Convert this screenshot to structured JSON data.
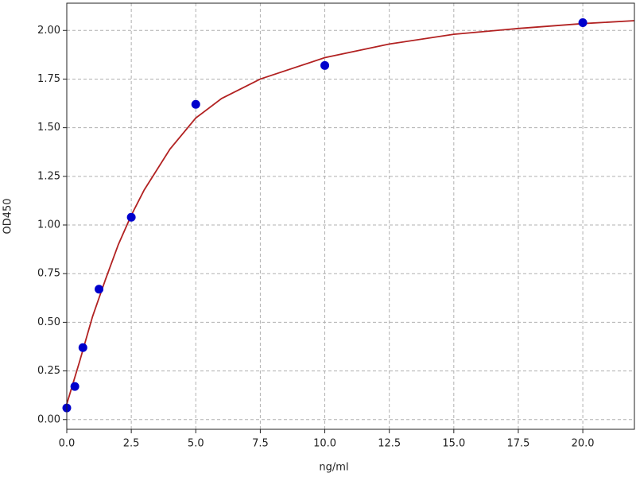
{
  "chart_data": {
    "type": "scatter",
    "xlabel": "ng/ml",
    "ylabel": "OD450",
    "xlim": [
      0,
      22
    ],
    "ylim": [
      -0.05,
      2.14
    ],
    "xticks": [
      {
        "value": 0,
        "label": "0.0"
      },
      {
        "value": 2.5,
        "label": "2.5"
      },
      {
        "value": 5,
        "label": "5.0"
      },
      {
        "value": 7.5,
        "label": "7.5"
      },
      {
        "value": 10,
        "label": "10.0"
      },
      {
        "value": 12.5,
        "label": "12.5"
      },
      {
        "value": 15,
        "label": "15.0"
      },
      {
        "value": 17.5,
        "label": "17.5"
      },
      {
        "value": 20,
        "label": "20.0"
      }
    ],
    "yticks": [
      {
        "value": 0,
        "label": "0.00"
      },
      {
        "value": 0.25,
        "label": "0.25"
      },
      {
        "value": 0.5,
        "label": "0.50"
      },
      {
        "value": 0.75,
        "label": "0.75"
      },
      {
        "value": 1,
        "label": "1.00"
      },
      {
        "value": 1.25,
        "label": "1.25"
      },
      {
        "value": 1.5,
        "label": "1.50"
      },
      {
        "value": 1.75,
        "label": "1.75"
      },
      {
        "value": 2,
        "label": "2.00"
      }
    ],
    "grid": true,
    "series": [
      {
        "kind": "line",
        "color": "#b22222",
        "x": [
          0,
          0.5,
          1,
          1.5,
          2,
          2.5,
          3,
          4,
          5,
          6,
          7.5,
          10,
          12.5,
          15,
          17.5,
          20,
          22
        ],
        "values": [
          0.08,
          0.3,
          0.53,
          0.72,
          0.9,
          1.05,
          1.18,
          1.39,
          1.55,
          1.65,
          1.75,
          1.86,
          1.93,
          1.98,
          2.01,
          2.035,
          2.05
        ]
      },
      {
        "kind": "points",
        "color": "#0000cc",
        "x": [
          0,
          0.3125,
          0.625,
          1.25,
          2.5,
          5,
          10,
          20
        ],
        "values": [
          0.06,
          0.17,
          0.37,
          0.67,
          1.04,
          1.62,
          1.82,
          2.04
        ]
      }
    ]
  }
}
